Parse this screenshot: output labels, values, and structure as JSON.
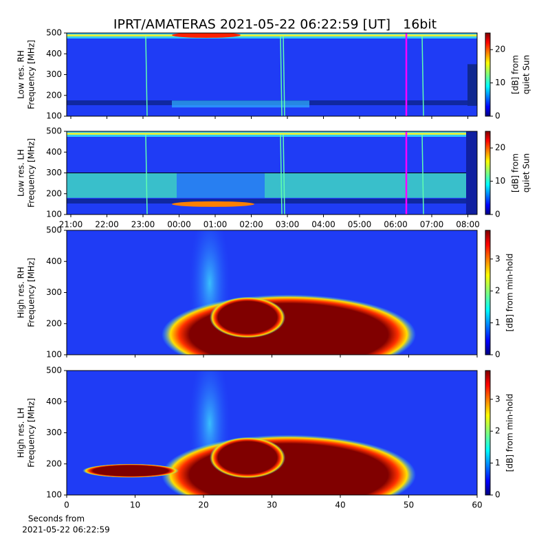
{
  "title": "IPRT/AMATERAS 2021-05-22 06:22:59 [UT]   16bit",
  "chart_data": [
    {
      "type": "heatmap",
      "ylabel": [
        "Low res. RH",
        "Frequency [MHz]"
      ],
      "ylim": [
        100,
        500
      ],
      "yticks": [
        100,
        200,
        300,
        400,
        500
      ],
      "colorbar_label": [
        "[dB] from",
        "quiet Sun"
      ],
      "clim": [
        0,
        25
      ],
      "cticks": [
        0,
        10,
        20
      ],
      "colormap": "jet"
    },
    {
      "type": "heatmap",
      "ylabel": [
        "Low res. LH",
        "Frequency [MHz]"
      ],
      "ylim": [
        100,
        500
      ],
      "yticks": [
        100,
        200,
        300,
        400,
        500
      ],
      "x_tick_labels": [
        "21:00",
        "22:00",
        "23:00",
        "00:00",
        "01:00",
        "02:00",
        "03:00",
        "04:00",
        "05:00",
        "06:00",
        "07:00",
        "08:00"
      ],
      "colorbar_label": [
        "[dB] from",
        "quiet Sun"
      ],
      "clim": [
        0,
        25
      ],
      "cticks": [
        0,
        10,
        20
      ],
      "colormap": "jet"
    },
    {
      "type": "heatmap",
      "ylabel": [
        "High res. RH",
        "Frequency [MHz]"
      ],
      "ylim": [
        100,
        500
      ],
      "yticks": [
        100,
        200,
        300,
        400,
        500
      ],
      "xlim": [
        0,
        60
      ],
      "xticks": [
        0,
        10,
        20,
        30,
        40,
        50,
        60
      ],
      "colorbar_label": [
        "[dB] from min-hold"
      ],
      "clim": [
        0,
        3.9
      ],
      "cticks": [
        0,
        1,
        2,
        3
      ],
      "colormap": "jet"
    },
    {
      "type": "heatmap",
      "ylabel": [
        "High res. LH",
        "Frequency [MHz]"
      ],
      "ylim": [
        100,
        500
      ],
      "yticks": [
        100,
        200,
        300,
        400,
        500
      ],
      "xlim": [
        0,
        60
      ],
      "xticks": [
        0,
        10,
        20,
        30,
        40,
        50,
        60
      ],
      "xlabel": [
        "Seconds from",
        "2021-05-22 06:22:59"
      ],
      "colorbar_label": [
        "[dB] from min-hold"
      ],
      "clim": [
        0,
        3.9
      ],
      "cticks": [
        0,
        1,
        2,
        3
      ],
      "colormap": "jet"
    }
  ]
}
